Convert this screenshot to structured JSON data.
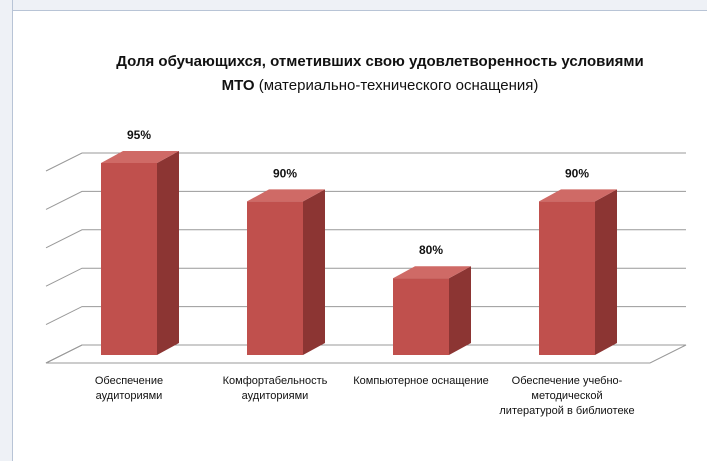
{
  "chart_data": {
    "type": "bar3d",
    "title": "Доля обучающихся, отметивших свою удовлетворенность условиями МТО",
    "title_note": "(материально-технического оснащения)",
    "categories": [
      "Обеспечение аудиториями",
      "Комфортабельность аудиториями",
      "Компьютерное оснащение",
      "Обеспечение учебно-методической литературой в библиотеке"
    ],
    "values": [
      95,
      90,
      80,
      90
    ],
    "value_labels": [
      "95%",
      "90%",
      "80%",
      "90%"
    ],
    "color": "#c0504d",
    "ylim": [
      70,
      95
    ],
    "yticks": [
      70,
      75,
      80,
      85,
      90,
      95
    ],
    "grid": true
  }
}
